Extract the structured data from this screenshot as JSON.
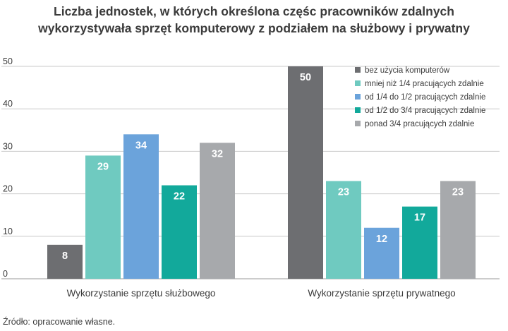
{
  "title_lines": [
    "Liczba jednostek, w których określona częśc pracowników  zdalnych",
    "wykorzystywała sprzęt komputerowy z podziałem na służbowy i prywatny"
  ],
  "source": "Źródło: opracowanie własne.",
  "chart_data": {
    "type": "bar",
    "title": "Liczba jednostek, w których określona częśc pracowników  zdalnych wykorzystywała sprzęt komputerowy z podziałem na służbowy i prywatny",
    "categories": [
      "Wykorzystanie sprzętu służbowego",
      "Wykorzystanie sprzętu prywatnego"
    ],
    "series": [
      {
        "name": "bez użycia komputerów",
        "values": [
          8,
          50
        ],
        "color": "#6d6e71"
      },
      {
        "name": "mniej niż 1/4 pracujących zdalnie",
        "values": [
          29,
          23
        ],
        "color": "#6fcac0"
      },
      {
        "name": "od 1/4 do 1/2 pracujących zdalnie",
        "values": [
          34,
          12
        ],
        "color": "#6ba3db"
      },
      {
        "name": "od 1/2 do 3/4 pracujących zdalnie",
        "values": [
          22,
          17
        ],
        "color": "#12a99b"
      },
      {
        "name": "ponad 3/4 pracujących zdalnie",
        "values": [
          32,
          23
        ],
        "color": "#a7a9ac"
      }
    ],
    "yticks": [
      0,
      10,
      20,
      30,
      40,
      50
    ],
    "ylim": [
      0,
      50
    ],
    "xlabel": "",
    "ylabel": "",
    "grid": true,
    "legend_position": "top-right",
    "data_labels": true
  }
}
